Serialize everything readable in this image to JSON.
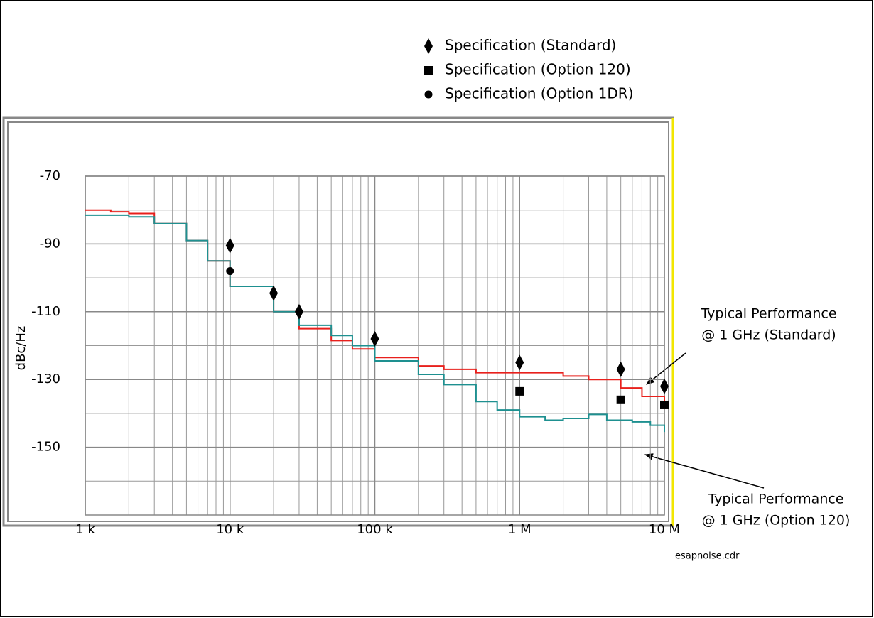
{
  "chart_data": {
    "type": "line",
    "y_label": "dBc/Hz",
    "xscale": "log",
    "xlim": [
      1000,
      10000000
    ],
    "ylim": [
      -170,
      -70
    ],
    "xticks": [
      {
        "value": 1000,
        "label": "1 k"
      },
      {
        "value": 10000,
        "label": "10 k"
      },
      {
        "value": 100000,
        "label": "100 k"
      },
      {
        "value": 1000000,
        "label": "1 M"
      },
      {
        "value": 10000000,
        "label": "10 M"
      }
    ],
    "xminor_ticks": [
      2000,
      3000,
      4000,
      5000,
      6000,
      7000,
      8000,
      9000,
      20000,
      30000,
      40000,
      50000,
      60000,
      70000,
      80000,
      90000,
      200000,
      300000,
      400000,
      500000,
      600000,
      700000,
      800000,
      900000,
      2000000,
      3000000,
      4000000,
      5000000,
      6000000,
      7000000,
      8000000,
      9000000
    ],
    "yticks": [
      -70,
      -90,
      -110,
      -130,
      -150
    ],
    "yminor_ticks": [
      -80,
      -100,
      -120,
      -140,
      -160
    ],
    "grid": true,
    "series": [
      {
        "color": "#e8201c",
        "x": [
          1000,
          1500,
          2000,
          3000,
          5000,
          7000,
          10000,
          20000,
          30000,
          50000,
          70000,
          100000,
          200000,
          300000,
          500000,
          1000000,
          2000000,
          3000000,
          5000000,
          7000000,
          10000000
        ],
        "values": [
          -80,
          -80.5,
          -81,
          -84,
          -89,
          -95,
          -102.5,
          -110,
          -115,
          -118.5,
          -121,
          -123.5,
          -126,
          -127,
          -128,
          -128,
          -129,
          -130,
          -132.5,
          -135,
          -138
        ]
      },
      {
        "color": "#1e9090",
        "x": [
          1000,
          1500,
          2000,
          3000,
          5000,
          7000,
          10000,
          20000,
          30000,
          50000,
          70000,
          100000,
          200000,
          300000,
          500000,
          700000,
          1000000,
          1500000,
          2000000,
          3000000,
          4000000,
          6000000,
          8000000,
          10000000
        ],
        "values": [
          -81.5,
          -81.5,
          -82,
          -84,
          -89,
          -95,
          -102.5,
          -110,
          -114,
          -117,
          -120,
          -124.5,
          -128.5,
          -131.5,
          -136.5,
          -139,
          -141,
          -142,
          -141.5,
          -140.3,
          -142,
          -142.5,
          -143.5,
          -145.5
        ]
      }
    ],
    "annotations": [
      {
        "lines": [
          "Typical Performance",
          "@ 1 GHz (Standard)"
        ],
        "series": 0
      },
      {
        "lines": [
          "Typical Performance",
          "@ 1 GHz (Option 120)"
        ],
        "series": 1
      }
    ],
    "markers": [
      {
        "name": "Specification (Standard)",
        "shape": "diamond",
        "color": "#000000",
        "x": [
          10000,
          20000,
          30000,
          100000,
          1000000,
          5000000,
          10000000
        ],
        "values": [
          -90.5,
          -104.5,
          -110,
          -118,
          -125,
          -127,
          -132
        ]
      },
      {
        "name": "Specification (Option 120)",
        "shape": "square",
        "color": "#000000",
        "x": [
          1000000,
          5000000,
          10000000
        ],
        "values": [
          -133.5,
          -136,
          -137.5
        ]
      },
      {
        "name": "Specification (Option 1DR)",
        "shape": "circle",
        "color": "#000000",
        "x": [
          10000
        ],
        "values": [
          -98
        ]
      }
    ],
    "footnote": "esapnoise.cdr"
  }
}
